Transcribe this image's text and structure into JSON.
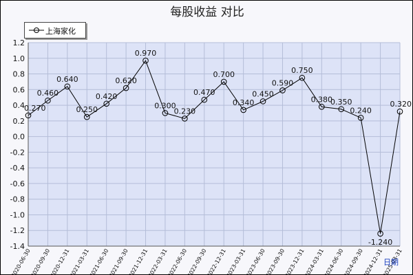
{
  "chart_data": {
    "type": "line",
    "title": "每股收益  对比",
    "xlabel": "日期",
    "ylabel": "",
    "ylim": [
      -1.4,
      1.2
    ],
    "ytick_step": 0.2,
    "grid": true,
    "legend_position": "top-left",
    "colors": {
      "line": "#000000",
      "plot_bg": "#dde3f7",
      "grid": "#b4bdd8",
      "frame_bg": "#f7f7fb"
    },
    "categories": [
      "2020-06-30",
      "2020-09-30",
      "2020-12-31",
      "2021-03-31",
      "2021-06-30",
      "2021-09-30",
      "2021-12-31",
      "2022-03-31",
      "2022-06-30",
      "2022-09-30",
      "2022-12-31",
      "2023-03-31",
      "2023-06-30",
      "2023-09-30",
      "2023-12-31",
      "2024-03-31",
      "2024-06-30",
      "2024-09-30",
      "2024-12-31",
      "2025-03-31"
    ],
    "series": [
      {
        "name": "上海家化",
        "values": [
          0.27,
          0.46,
          0.64,
          0.25,
          0.42,
          0.62,
          0.97,
          0.3,
          0.23,
          0.47,
          0.7,
          0.34,
          0.45,
          0.59,
          0.75,
          0.38,
          0.35,
          0.24,
          -1.24,
          0.32
        ],
        "labels": [
          "0.270",
          "0.460",
          "0.640",
          "0.250",
          "0.420",
          "0.620",
          "0.970",
          "0.300",
          "0.230",
          "0.470",
          "0.700",
          "0.340",
          "0.450",
          "0.590",
          "0.750",
          "0.380",
          "0.350",
          "0.240",
          "-1.240",
          "0.320"
        ]
      }
    ]
  }
}
